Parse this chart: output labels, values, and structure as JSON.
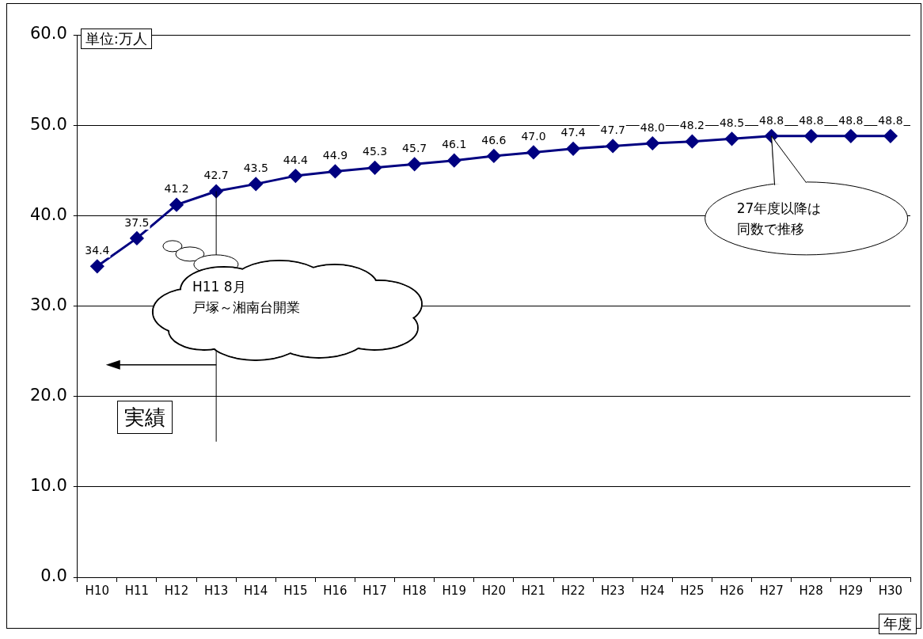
{
  "chart_data": {
    "type": "line",
    "ylabel": "単位:万人",
    "xlabel": "年度",
    "categories": [
      "H10",
      "H11",
      "H12",
      "H13",
      "H14",
      "H15",
      "H16",
      "H17",
      "H18",
      "H19",
      "H20",
      "H21",
      "H22",
      "H23",
      "H24",
      "H25",
      "H26",
      "H27",
      "H28",
      "H29",
      "H30"
    ],
    "series": [
      {
        "color": "#000080",
        "values": [
          34.4,
          37.5,
          41.2,
          42.7,
          43.5,
          44.4,
          44.9,
          45.3,
          45.7,
          46.1,
          46.6,
          47.0,
          47.4,
          47.7,
          48.0,
          48.2,
          48.5,
          48.8,
          48.8,
          48.8,
          48.8
        ],
        "value_labels": [
          "34.4",
          "37.5",
          "41.2",
          "42.7",
          "43.5",
          "44.4",
          "44.9",
          "45.3",
          "45.7",
          "46.1",
          "46.6",
          "47.0",
          "47.4",
          "47.7",
          "48.0",
          "48.2",
          "48.5",
          "48.8",
          "48.8",
          "48.8",
          "48.8"
        ]
      }
    ],
    "ylim": [
      0,
      60
    ],
    "yticks": [
      {
        "value": 0,
        "label": "0.0"
      },
      {
        "value": 10,
        "label": "10.0"
      },
      {
        "value": 20,
        "label": "20.0"
      },
      {
        "value": 30,
        "label": "30.0"
      },
      {
        "value": 40,
        "label": "40.0"
      },
      {
        "value": 50,
        "label": "50.0"
      },
      {
        "value": 60,
        "label": "60.0"
      }
    ],
    "grid": "y",
    "legend": false,
    "marker": "diamond",
    "line_style": "solid",
    "annotations": [
      "H11 8月",
      "戸塚～湘南台開業",
      "27年度以降は",
      "同数で推移",
      "実績"
    ]
  }
}
